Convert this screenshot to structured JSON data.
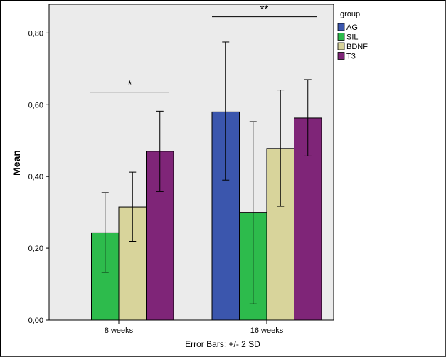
{
  "chart_data": {
    "type": "bar",
    "categories": [
      "8 weeks",
      "16 weeks"
    ],
    "series": [
      {
        "name": "AG",
        "color": "#3b56ad",
        "values": [
          0.0,
          0.58
        ],
        "err_low": [
          0.0,
          0.39
        ],
        "err_high": [
          0.0,
          0.775
        ]
      },
      {
        "name": "SIL",
        "color": "#2dbb4c",
        "values": [
          0.243,
          0.3
        ],
        "err_low": [
          0.133,
          0.045
        ],
        "err_high": [
          0.355,
          0.553
        ]
      },
      {
        "name": "BDNF",
        "color": "#d8d49b",
        "values": [
          0.315,
          0.478
        ],
        "err_low": [
          0.219,
          0.317
        ],
        "err_high": [
          0.412,
          0.641
        ]
      },
      {
        "name": "T3",
        "color": "#7f2578",
        "values": [
          0.47,
          0.563
        ],
        "err_low": [
          0.358,
          0.457
        ],
        "err_high": [
          0.582,
          0.67
        ]
      }
    ],
    "ylabel": "Mean",
    "ylim": [
      0,
      0.88
    ],
    "yticks": [
      {
        "value": 0.0,
        "label": "0,00"
      },
      {
        "value": 0.2,
        "label": "0,20"
      },
      {
        "value": 0.4,
        "label": "0,40"
      },
      {
        "value": 0.6,
        "label": "0,60"
      },
      {
        "value": 0.8,
        "label": "0,80"
      }
    ],
    "legend_title": "group",
    "legend_position": "right",
    "footer": "Error Bars: +/- 2 SD",
    "significance": [
      {
        "label": "*",
        "category": 0,
        "y": 0.635
      },
      {
        "label": "**",
        "category": 1,
        "y": 0.845
      }
    ],
    "plot_background": "#ebebeb"
  }
}
